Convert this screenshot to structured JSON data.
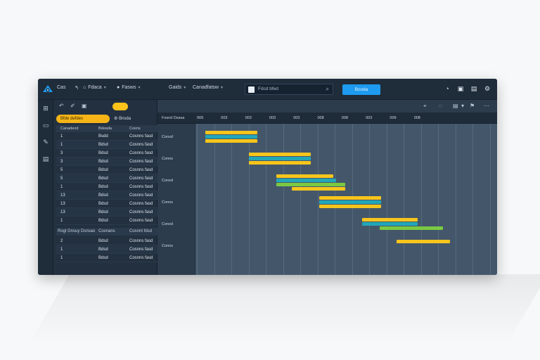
{
  "topbar": {
    "app": "Cas",
    "items": [
      "Fdaca",
      "Fasws"
    ],
    "menu": [
      "Gaids",
      "Canadfatsw"
    ],
    "search": "Fdcd bfed",
    "primary": "Bcoda"
  },
  "grid": {
    "tab_active": "Bfde defdes",
    "tab2": "Bnsda",
    "head": {
      "c1": "Canadeod",
      "c2": "Bdeada",
      "c3": "Cosns"
    },
    "rows": [
      {
        "id": "1",
        "name": "Bsdd",
        "status": "Cosnns fasd"
      },
      {
        "id": "1",
        "name": "Bdsd",
        "status": "Cosnns fasd"
      },
      {
        "id": "3",
        "name": "Bdsd",
        "status": "Cosnns fasd"
      },
      {
        "id": "3",
        "name": "Bdsd",
        "status": "Cosnns fasd"
      },
      {
        "id": "5",
        "name": "Bdsd",
        "status": "Cosnns fasd"
      },
      {
        "id": "5",
        "name": "Bdsd",
        "status": "Cosnns fasd"
      },
      {
        "id": "1",
        "name": "Bdsd",
        "status": "Cosnns fasd"
      },
      {
        "id": "13",
        "name": "Bdsd",
        "status": "Cosnns fasd"
      },
      {
        "id": "13",
        "name": "Bdsd",
        "status": "Cosnns fasd"
      },
      {
        "id": "13",
        "name": "Bdsd",
        "status": "Cosnns fasd"
      },
      {
        "id": "1",
        "name": "Bdsd",
        "status": "Cosnns fasd"
      }
    ],
    "sub_head": {
      "c1": "Rogl Gnsuy Dsnsao",
      "c2": "Cosnans",
      "c3": "Cosnnt fdsd"
    },
    "sub_rows": [
      {
        "id": "2",
        "name": "Bdsd",
        "status": "Cosnns fasd"
      },
      {
        "id": "1",
        "name": "Bdsd",
        "status": "Cosnns fasd"
      },
      {
        "id": "1",
        "name": "Bdsd",
        "status": "Cosnns fasd"
      }
    ]
  },
  "gantt": {
    "resource_header": "Fosnd Dsasa",
    "ticks": [
      "009",
      "003",
      "003",
      "003",
      "003",
      "008",
      "008",
      "003",
      "009",
      "008"
    ],
    "resources": [
      "Conxd",
      "Conns",
      "Conxd",
      "Conns",
      "Conxd",
      "Conns"
    ],
    "bars": [
      {
        "color": "#f7c51c",
        "row": 0,
        "lane": 0,
        "start": 0.5,
        "end": 3.5
      },
      {
        "color": "#22a7b8",
        "row": 0,
        "lane": 1,
        "start": 0.5,
        "end": 3.5
      },
      {
        "color": "#f7c51c",
        "row": 0,
        "lane": 2,
        "start": 0.5,
        "end": 3.5
      },
      {
        "color": "#f7c51c",
        "row": 1,
        "lane": 0,
        "start": 3.0,
        "end": 6.6
      },
      {
        "color": "#22a7b8",
        "row": 1,
        "lane": 1,
        "start": 3.0,
        "end": 6.6
      },
      {
        "color": "#f7c51c",
        "row": 1,
        "lane": 2,
        "start": 3.0,
        "end": 6.6
      },
      {
        "color": "#f7c51c",
        "row": 2,
        "lane": 0,
        "start": 4.6,
        "end": 7.9
      },
      {
        "color": "#22a7b8",
        "row": 2,
        "lane": 1,
        "start": 4.6,
        "end": 8.1
      },
      {
        "color": "#7ac943",
        "row": 2,
        "lane": 2,
        "start": 4.6,
        "end": 8.6
      },
      {
        "color": "#f7c51c",
        "row": 2,
        "lane": 3,
        "start": 5.5,
        "end": 8.6
      },
      {
        "color": "#f7c51c",
        "row": 3,
        "lane": 0,
        "start": 7.1,
        "end": 10.7
      },
      {
        "color": "#22a7b8",
        "row": 3,
        "lane": 1,
        "start": 7.1,
        "end": 10.7
      },
      {
        "color": "#f7c51c",
        "row": 3,
        "lane": 2,
        "start": 7.1,
        "end": 10.7
      },
      {
        "color": "#f7c51c",
        "row": 4,
        "lane": 0,
        "start": 9.6,
        "end": 12.8
      },
      {
        "color": "#22a7b8",
        "row": 4,
        "lane": 1,
        "start": 9.6,
        "end": 12.8
      },
      {
        "color": "#7ac943",
        "row": 4,
        "lane": 2,
        "start": 10.6,
        "end": 14.3
      },
      {
        "color": "#f7c51c",
        "row": 5,
        "lane": 0,
        "start": 11.6,
        "end": 14.7
      }
    ]
  }
}
